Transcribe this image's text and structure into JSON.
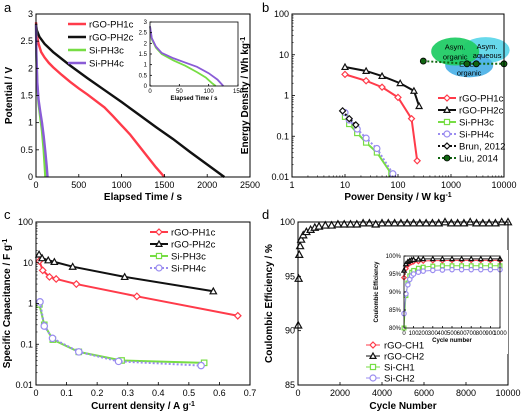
{
  "chart_data": [
    {
      "panel": "a",
      "type": "line",
      "xlabel": "Elapsed Time / s",
      "ylabel": "Potential / V",
      "xlim": [
        0,
        2500
      ],
      "ylim": [
        0,
        3
      ],
      "xticks": [
        "0",
        "500",
        "1000",
        "1500",
        "2000",
        "2500"
      ],
      "yticks": [
        "0",
        "0.5",
        "1",
        "1.5",
        "2",
        "2.5",
        "3"
      ],
      "series": [
        {
          "name": "rGO-PH1c",
          "color": "#ff3b4a",
          "x": [
            0,
            10,
            30,
            60,
            100,
            150,
            200,
            300,
            400,
            500,
            600,
            700,
            800,
            900,
            1000,
            1100,
            1200,
            1300,
            1400,
            1500
          ],
          "y": [
            2.85,
            2.62,
            2.45,
            2.3,
            2.2,
            2.1,
            2.02,
            1.88,
            1.75,
            1.63,
            1.52,
            1.4,
            1.28,
            1.12,
            0.95,
            0.78,
            0.58,
            0.38,
            0.18,
            0.0
          ]
        },
        {
          "name": "rGO-PH2c",
          "color": "#111111",
          "x": [
            0,
            10,
            40,
            100,
            200,
            400,
            600,
            800,
            1000,
            1200,
            1400,
            1600,
            1800,
            2000,
            2200
          ],
          "y": [
            2.82,
            2.7,
            2.58,
            2.45,
            2.3,
            2.05,
            1.82,
            1.6,
            1.38,
            1.15,
            0.92,
            0.7,
            0.46,
            0.23,
            0.0
          ]
        },
        {
          "name": "Si-PH3c",
          "color": "#77dd44",
          "x": [
            0,
            5,
            15,
            30,
            50,
            70,
            90,
            100,
            110
          ],
          "y": [
            2.8,
            2.2,
            1.7,
            1.35,
            1.1,
            0.85,
            0.5,
            0.25,
            0.0
          ]
        },
        {
          "name": "Si-PH4c",
          "color": "#8a5cd6",
          "x": [
            0,
            5,
            15,
            30,
            50,
            70,
            90,
            110,
            125,
            135
          ],
          "y": [
            2.8,
            2.25,
            1.75,
            1.42,
            1.2,
            1.0,
            0.75,
            0.45,
            0.2,
            0.0
          ]
        }
      ]
    },
    {
      "panel": "a-inset",
      "type": "line",
      "xlabel": "Elapsed Time / s",
      "xlim": [
        0,
        150
      ],
      "ylim": [
        0,
        3
      ],
      "xticks": [
        "0",
        "50",
        "100",
        "150"
      ],
      "yticks": [
        "0",
        "0.5",
        "1",
        "1.5",
        "2",
        "2.5",
        "3"
      ],
      "series": [
        {
          "name": "Si-PH3c",
          "color": "#77dd44",
          "x": [
            0,
            3,
            10,
            20,
            40,
            60,
            80,
            95,
            105,
            112
          ],
          "y": [
            2.8,
            2.2,
            1.8,
            1.5,
            1.2,
            0.95,
            0.65,
            0.4,
            0.15,
            0.0
          ]
        },
        {
          "name": "Si-PH4c",
          "color": "#8a5cd6",
          "x": [
            0,
            3,
            10,
            20,
            40,
            60,
            80,
            100,
            115,
            125
          ],
          "y": [
            2.8,
            2.25,
            1.85,
            1.55,
            1.3,
            1.1,
            0.9,
            0.6,
            0.3,
            0.0
          ]
        }
      ]
    },
    {
      "panel": "b",
      "type": "line",
      "xlabel": "Power Density / W kg-1",
      "ylabel": "Energy Density / Wh kg-1",
      "xscale": "log",
      "yscale": "log",
      "xlim": [
        1,
        10000
      ],
      "ylim": [
        0.01,
        100
      ],
      "xticks": [
        "1",
        "10",
        "100",
        "1000",
        "10000"
      ],
      "yticks": [
        "0.01",
        "0.1",
        "1",
        "10",
        "100"
      ],
      "series": [
        {
          "name": "rGO-PH1c",
          "color": "#ff3b4a",
          "marker": "diamond",
          "x": [
            10,
            25,
            50,
            100,
            180,
            230
          ],
          "y": [
            3.3,
            2.3,
            1.6,
            0.9,
            0.27,
            0.025
          ]
        },
        {
          "name": "rGO-PH2c",
          "color": "#111111",
          "marker": "triangle",
          "x": [
            10,
            25,
            50,
            110,
            200,
            250
          ],
          "y": [
            5.0,
            4.0,
            3.0,
            2.0,
            1.3,
            0.55
          ]
        },
        {
          "name": "Si-PH3c",
          "color": "#77dd44",
          "marker": "square",
          "x": [
            10,
            12,
            17,
            25,
            40,
            75
          ],
          "y": [
            0.3,
            0.2,
            0.12,
            0.07,
            0.04,
            0.012
          ]
        },
        {
          "name": "Si-PH4c",
          "color": "#9a8cf0",
          "marker": "circle",
          "x": [
            10,
            12,
            17,
            25,
            40,
            80
          ],
          "y": [
            0.38,
            0.25,
            0.15,
            0.09,
            0.05,
            0.012
          ]
        },
        {
          "name": "Brun, 2012",
          "color": "#111111",
          "marker": "diamond-open",
          "x": [
            9,
            12,
            16
          ],
          "y": [
            0.42,
            0.27,
            0.19
          ]
        },
        {
          "name": "Liu, 2014",
          "color": "#116611",
          "marker": "circle-filled",
          "x": [
            300,
            2000,
            3000,
            10000
          ],
          "y": [
            7.0,
            6.0,
            6.0,
            6.0
          ]
        }
      ],
      "annotations": [
        "Asym. organic",
        "Asym. aqueous",
        "EDLC organic"
      ]
    },
    {
      "panel": "c",
      "type": "line",
      "xlabel": "Current density / A g-1",
      "ylabel": "Specific Capacitance / F g-1",
      "yscale": "log",
      "xlim": [
        0,
        0.7
      ],
      "ylim": [
        0.01,
        100
      ],
      "xticks": [
        "0",
        "0.1",
        "0.2",
        "0.3",
        "0.4",
        "0.5",
        "0.6",
        "0.7"
      ],
      "yticks": [
        "0.01",
        "0.1",
        "1",
        "10",
        "100"
      ],
      "series": [
        {
          "name": "rGO-PH1c",
          "color": "#ff3b4a",
          "marker": "diamond",
          "x": [
            0.011,
            0.022,
            0.044,
            0.066,
            0.132,
            0.33,
            0.66
          ],
          "y": [
            11,
            6.5,
            4.5,
            4.0,
            3.0,
            1.5,
            0.5
          ]
        },
        {
          "name": "rGO-PH2c",
          "color": "#111111",
          "marker": "triangle",
          "x": [
            0.01,
            0.02,
            0.04,
            0.06,
            0.12,
            0.29,
            0.58
          ],
          "y": [
            16,
            13,
            11.5,
            10.5,
            8.0,
            4.5,
            2.0
          ]
        },
        {
          "name": "Si-PH3c",
          "color": "#77dd44",
          "marker": "square",
          "x": [
            0.011,
            0.027,
            0.055,
            0.14,
            0.28,
            0.55
          ],
          "y": [
            0.95,
            0.3,
            0.13,
            0.065,
            0.04,
            0.035
          ]
        },
        {
          "name": "Si-PH4c",
          "color": "#9a8cf0",
          "marker": "circle",
          "x": [
            0.013,
            0.027,
            0.054,
            0.14,
            0.27,
            0.54
          ],
          "y": [
            1.1,
            0.28,
            0.14,
            0.065,
            0.038,
            0.03
          ]
        }
      ]
    },
    {
      "panel": "d",
      "type": "scatter",
      "xlabel": "Cycle Number",
      "ylabel": "Coulombic Efficiency / %",
      "xlim": [
        0,
        10000
      ],
      "ylim": [
        85,
        100
      ],
      "xticks": [
        "0",
        "2000",
        "4000",
        "6000",
        "8000",
        "10000"
      ],
      "yticks": [
        "85",
        "90",
        "95",
        "100"
      ],
      "series": [
        {
          "name": "rGO-CH2",
          "color": "#111111",
          "marker": "triangle-open",
          "x": [
            10,
            30,
            60,
            100,
            150,
            250,
            400,
            600,
            800,
            1000,
            1300,
            1600,
            1900,
            2200,
            2500,
            2800,
            3100,
            3400,
            3700,
            4000,
            4300,
            4600,
            4900,
            5200,
            5500,
            5800,
            6100,
            6400,
            6700,
            7000,
            7300,
            7600,
            7900,
            8200,
            8500,
            8800,
            9100,
            9400,
            9700,
            10000
          ],
          "y": [
            90.5,
            94.8,
            97.0,
            97.8,
            98.4,
            98.8,
            99.1,
            99.3,
            99.5,
            99.6,
            99.7,
            99.7,
            99.8,
            99.8,
            99.8,
            99.8,
            99.9,
            99.9,
            99.8,
            99.9,
            99.9,
            99.9,
            99.9,
            99.9,
            99.9,
            99.9,
            99.9,
            99.9,
            99.9,
            100.0,
            99.9,
            99.9,
            99.9,
            100.0,
            99.9,
            99.9,
            99.9,
            99.9,
            100.0,
            100.0
          ]
        }
      ]
    },
    {
      "panel": "d-inset",
      "type": "line",
      "xlabel": "Cycle number",
      "ylabel": "Coulombic Efficiency",
      "xlim": [
        0,
        1000
      ],
      "ylim": [
        80,
        100
      ],
      "xticks": [
        "0",
        "100",
        "200",
        "300",
        "400",
        "500",
        "600",
        "700",
        "800",
        "900",
        "1000"
      ],
      "yticks": [
        "80%",
        "85%",
        "90%",
        "95%",
        "100%"
      ],
      "series": [
        {
          "name": "rGO-CH1",
          "color": "#ff3b4a",
          "marker": "diamond-open",
          "x": [
            0,
            20,
            40,
            60,
            80,
            100,
            150,
            200,
            300,
            400,
            500,
            600,
            700,
            800,
            900,
            1000
          ],
          "y": [
            94.0,
            96.5,
            97.5,
            98.0,
            98.2,
            98.4,
            98.5,
            98.6,
            98.7,
            98.7,
            98.8,
            98.8,
            98.8,
            98.8,
            98.8,
            98.8
          ]
        },
        {
          "name": "rGO-CH2",
          "color": "#111111",
          "marker": "triangle-open",
          "x": [
            0,
            20,
            40,
            60,
            80,
            100,
            150,
            200,
            300,
            400,
            500,
            600,
            700,
            800,
            900,
            1000
          ],
          "y": [
            96.0,
            97.8,
            98.4,
            98.7,
            98.9,
            99.0,
            99.1,
            99.2,
            99.2,
            99.2,
            99.2,
            99.2,
            99.2,
            99.2,
            99.2,
            99.2
          ]
        },
        {
          "name": "Si-CH1",
          "color": "#77dd44",
          "marker": "square-open",
          "x": [
            0,
            20,
            40,
            60,
            80,
            100,
            150,
            200,
            300,
            400,
            500,
            600,
            700,
            800,
            900,
            1000
          ],
          "y": [
            80.0,
            89.0,
            92.5,
            94.5,
            95.5,
            96.0,
            96.6,
            96.9,
            97.2,
            97.3,
            97.3,
            97.3,
            97.3,
            97.3,
            97.3,
            97.3
          ]
        },
        {
          "name": "Si-CH2",
          "color": "#9a8cf0",
          "marker": "circle-open",
          "x": [
            0,
            20,
            40,
            60,
            80,
            100,
            150,
            200,
            300,
            400,
            500,
            600,
            700,
            800,
            900,
            1000
          ],
          "y": [
            84.0,
            89.5,
            92.0,
            93.5,
            94.5,
            95.0,
            95.5,
            95.8,
            96.0,
            96.1,
            96.2,
            96.2,
            96.2,
            96.2,
            96.2,
            96.2
          ]
        }
      ]
    }
  ],
  "panel_labels": [
    "a",
    "b",
    "c",
    "d"
  ]
}
